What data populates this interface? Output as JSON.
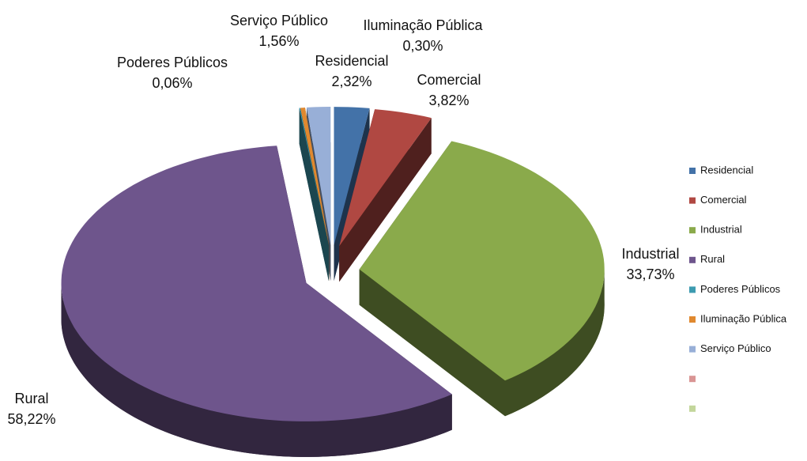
{
  "chart_data": {
    "type": "pie",
    "categories": [
      "Residencial",
      "Comercial",
      "Industrial",
      "Rural",
      "Poderes Públicos",
      "Iluminação Pública",
      "Serviço Público",
      null,
      null
    ],
    "values": [
      2.32,
      3.82,
      33.73,
      58.22,
      0.06,
      0.3,
      1.56,
      null,
      null
    ],
    "value_labels": [
      "2,32%",
      "3,82%",
      "33,73%",
      "58,22%",
      "0,06%",
      "0,30%",
      "1,56%",
      null,
      null
    ],
    "colors": [
      "#4372a8",
      "#b04842",
      "#8aaa4b",
      "#6e558c",
      "#3d9bb0",
      "#e0892f",
      "#98afd7",
      "#d99594",
      "#c3d69b"
    ],
    "legend": "right"
  }
}
